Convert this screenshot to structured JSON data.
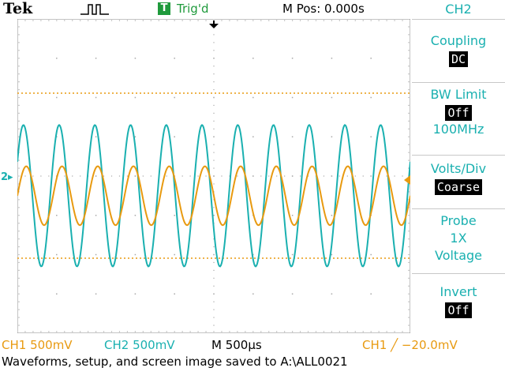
{
  "header": {
    "brand": "Tek",
    "trigger_status_badge": "T",
    "trigger_status": "Trig'd",
    "position_readout": "M Pos: 0.000s"
  },
  "screen": {
    "ch2_marker": "2",
    "colors": {
      "ch1": "#e89a10",
      "ch2": "#1ab0b0",
      "grid": "#a8a8a8"
    },
    "signals": {
      "ch1": {
        "cycles": 11,
        "amplitude_divs": 1.5,
        "offset_divs": 0.5
      },
      "ch2": {
        "cycles": 11,
        "amplitude_divs": 3.6,
        "offset_divs": 0.5
      }
    }
  },
  "menu": {
    "title": "CH2",
    "coupling": {
      "label": "Coupling",
      "value": "DC"
    },
    "bw_limit": {
      "label": "BW Limit",
      "value": "Off",
      "sub": "100MHz"
    },
    "volts_div": {
      "label": "Volts/Div",
      "value": "Coarse"
    },
    "probe": {
      "label": "Probe",
      "value": "1X",
      "sub": "Voltage"
    },
    "invert": {
      "label": "Invert",
      "value": "Off"
    }
  },
  "status": {
    "ch1": "CH1  500mV",
    "ch2": "CH2  500mV",
    "timebase": "M 500µs",
    "trigger": "CH1 ╱ −20.0mV"
  },
  "message": "Waveforms, setup, and screen image saved to A:\\ALL0021"
}
